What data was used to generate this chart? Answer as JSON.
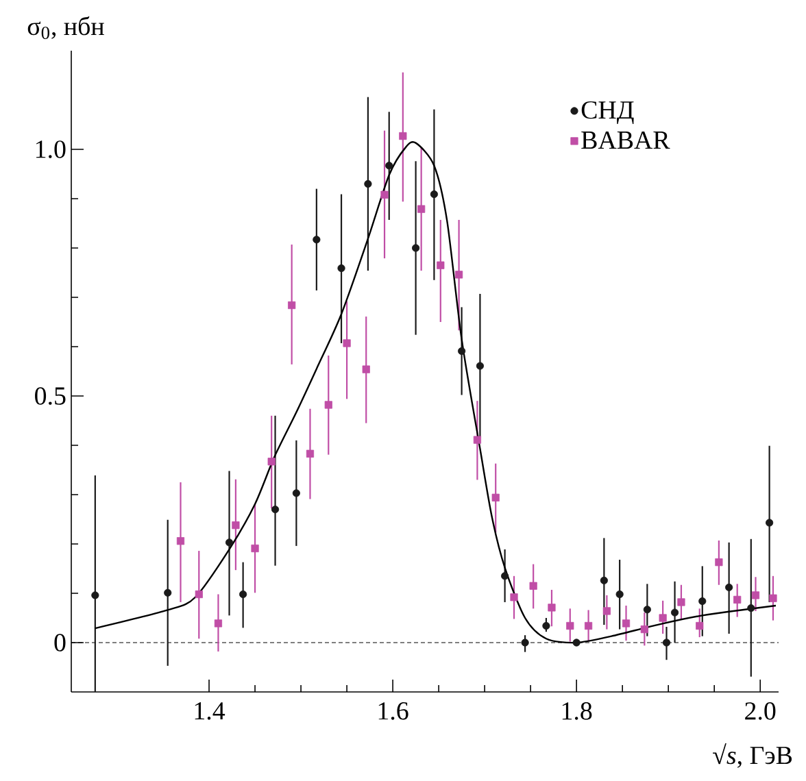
{
  "chart_data": {
    "type": "scatter",
    "xlabel": "√*s*, ГэВ",
    "ylabel": "σ$_{0}$, нбн",
    "xlim": [
      1.25,
      2.02
    ],
    "ylim": [
      -0.1,
      1.2
    ],
    "xticks": [
      1.4,
      1.6,
      1.8,
      {
        "value": 2,
        "label": "2.0"
      }
    ],
    "yticks": [
      0,
      0.5,
      {
        "value": 1,
        "label": "1.0"
      }
    ],
    "legend": "top right",
    "ref_lines": [
      {
        "axis": "y",
        "value": 0,
        "line_style": "dashed",
        "color": "#000000"
      }
    ],
    "series": [
      {
        "name": "СНД",
        "marker": "circle",
        "color": "#1a1a1a",
        "x": [
          1.276,
          1.355,
          1.422,
          1.437,
          1.472,
          1.495,
          1.517,
          1.544,
          1.573,
          1.596,
          1.625,
          1.645,
          1.675,
          1.695,
          1.722,
          1.744,
          1.767,
          1.8,
          1.83,
          1.847,
          1.877,
          1.898,
          1.907,
          1.937,
          1.966,
          1.99,
          2.01
        ],
        "values": [
          0.096,
          0.101,
          0.203,
          0.098,
          0.27,
          0.303,
          0.817,
          0.759,
          0.93,
          0.967,
          0.8,
          0.909,
          0.591,
          0.561,
          0.135,
          0.0,
          0.034,
          0.0,
          0.126,
          0.098,
          0.067,
          0.0,
          0.061,
          0.084,
          0.112,
          0.07,
          0.243
        ],
        "errors": [
          [
            -0.1,
            0.339
          ],
          [
            -0.047,
            0.249
          ],
          [
            0.055,
            0.348
          ],
          [
            0.03,
            0.163
          ],
          [
            0.156,
            0.46
          ],
          [
            0.196,
            0.41
          ],
          [
            0.714,
            0.92
          ],
          [
            0.607,
            0.909
          ],
          [
            0.754,
            1.106
          ],
          [
            0.857,
            1.076
          ],
          [
            0.624,
            0.976
          ],
          [
            0.735,
            1.081
          ],
          [
            0.502,
            0.68
          ],
          [
            0.416,
            0.707
          ],
          [
            0.082,
            0.189
          ],
          [
            -0.019,
            0.015
          ],
          [
            0.022,
            0.05
          ],
          null,
          [
            0.036,
            0.212
          ],
          [
            0.027,
            0.168
          ],
          [
            0.013,
            0.119
          ],
          [
            -0.035,
            0.032
          ],
          [
            0.0,
            0.124
          ],
          [
            0.013,
            0.155
          ],
          [
            0.018,
            0.203
          ],
          [
            -0.069,
            0.21
          ],
          [
            0.082,
            0.399
          ]
        ]
      },
      {
        "name": "BABAR",
        "marker": "square",
        "color": "#c04ea6",
        "x": [
          1.369,
          1.389,
          1.41,
          1.429,
          1.45,
          1.468,
          1.49,
          1.51,
          1.53,
          1.55,
          1.571,
          1.591,
          1.611,
          1.631,
          1.652,
          1.672,
          1.692,
          1.712,
          1.732,
          1.753,
          1.773,
          1.793,
          1.813,
          1.833,
          1.854,
          1.874,
          1.894,
          1.914,
          1.934,
          1.955,
          1.975,
          1.995,
          2.014
        ],
        "values": [
          0.206,
          0.098,
          0.039,
          0.238,
          0.191,
          0.367,
          0.684,
          0.383,
          0.482,
          0.607,
          0.554,
          0.908,
          1.027,
          0.879,
          0.765,
          0.746,
          0.411,
          0.294,
          0.092,
          0.115,
          0.071,
          0.034,
          0.034,
          0.064,
          0.039,
          0.027,
          0.05,
          0.082,
          0.034,
          0.163,
          0.087,
          0.096,
          0.09
        ],
        "errors": [
          [
            0.082,
            0.325
          ],
          [
            0.008,
            0.186
          ],
          [
            -0.018,
            0.098
          ],
          [
            0.147,
            0.331
          ],
          [
            0.101,
            0.281
          ],
          [
            0.272,
            0.46
          ],
          [
            0.564,
            0.807
          ],
          [
            0.291,
            0.474
          ],
          [
            0.381,
            0.582
          ],
          [
            0.494,
            0.692
          ],
          [
            0.445,
            0.661
          ],
          [
            0.779,
            1.038
          ],
          [
            0.894,
            1.156
          ],
          [
            0.754,
            1.004
          ],
          [
            0.65,
            0.857
          ],
          [
            0.633,
            0.857
          ],
          [
            0.33,
            0.49
          ],
          [
            0.223,
            0.363
          ],
          [
            0.048,
            0.135
          ],
          [
            0.069,
            0.159
          ],
          [
            0.033,
            0.107
          ],
          [
            0.002,
            0.069
          ],
          [
            0.002,
            0.066
          ],
          [
            0.027,
            0.096
          ],
          [
            0.004,
            0.075
          ],
          [
            -0.006,
            0.061
          ],
          [
            0.018,
            0.085
          ],
          [
            0.048,
            0.117
          ],
          [
            0.011,
            0.069
          ],
          [
            0.117,
            0.207
          ],
          [
            0.052,
            0.119
          ],
          [
            0.064,
            0.133
          ],
          [
            0.045,
            0.135
          ]
        ]
      },
      {
        "type": "line",
        "marker": "none",
        "line_style": "solid",
        "color": "#000000",
        "x": [
          1.276,
          1.355,
          1.385,
          1.422,
          1.45,
          1.471,
          1.495,
          1.517,
          1.544,
          1.573,
          1.596,
          1.614,
          1.625,
          1.645,
          1.659,
          1.675,
          1.695,
          1.708,
          1.722,
          1.744,
          1.767,
          1.8,
          1.838,
          1.888,
          1.937,
          2.017
        ],
        "values": [
          0.029,
          0.066,
          0.092,
          0.189,
          0.281,
          0.376,
          0.467,
          0.555,
          0.666,
          0.819,
          0.948,
          1.004,
          1.013,
          0.967,
          0.856,
          0.615,
          0.393,
          0.254,
          0.152,
          0.05,
          0.008,
          0.0,
          0.013,
          0.036,
          0.055,
          0.075
        ]
      }
    ]
  }
}
